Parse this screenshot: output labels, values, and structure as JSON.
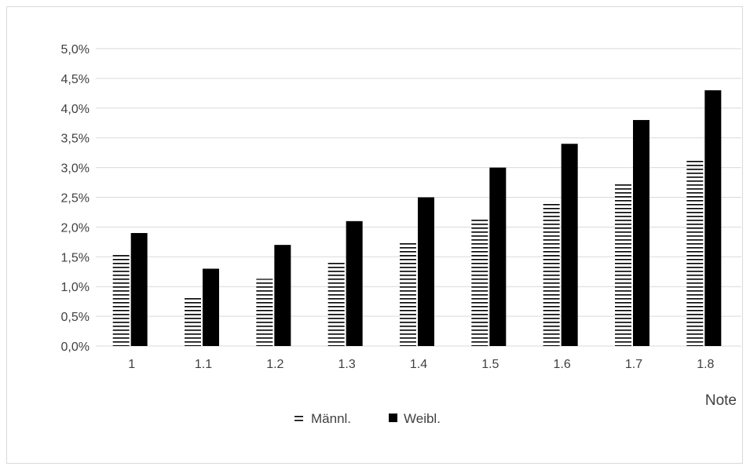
{
  "chart_data": {
    "type": "bar",
    "title": "",
    "xlabel": "Note",
    "ylabel": "",
    "categories": [
      "1",
      "1.1",
      "1.2",
      "1.3",
      "1.4",
      "1.5",
      "1.6",
      "1.7",
      "1.8"
    ],
    "series": [
      {
        "name": "Männl.",
        "values": [
          1.53,
          0.83,
          1.13,
          1.43,
          1.73,
          2.13,
          2.43,
          2.73,
          3.13
        ],
        "fill": "horizontal-stripes",
        "color": "#000000"
      },
      {
        "name": "Weibl.",
        "values": [
          1.9,
          1.3,
          1.7,
          2.1,
          2.5,
          3.0,
          3.4,
          3.8,
          4.3
        ],
        "fill": "solid",
        "color": "#000000"
      }
    ],
    "ylim": [
      0,
      5
    ],
    "yticks": [
      "0,0%",
      "0,5%",
      "1,0%",
      "1,5%",
      "2,0%",
      "2,5%",
      "3,0%",
      "3,5%",
      "4,0%",
      "4,5%",
      "5,0%"
    ],
    "ytick_values": [
      0,
      0.5,
      1,
      1.5,
      2,
      2.5,
      3,
      3.5,
      4,
      4.5,
      5
    ],
    "grid": true,
    "legend": "bottom-center",
    "gridline_color": "#d9d9d9"
  }
}
